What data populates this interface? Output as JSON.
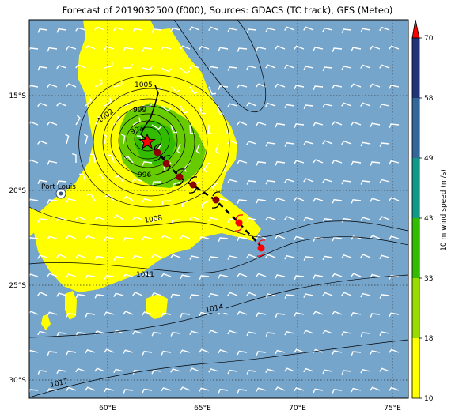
{
  "title": "Forecast of 2019032500 (f000), Sources: GDACS (TC track), GFS (Meteo)",
  "map": {
    "lon_range": [
      55.8,
      76
    ],
    "lat_range": [
      -31,
      -11
    ],
    "lon_ticks": [
      "60°E",
      "65°E",
      "70°E",
      "75°E"
    ],
    "lat_ticks": [
      "15°S",
      "20°S",
      "25°S",
      "30°S"
    ],
    "place_label": "Port Louis",
    "isobar_labels": [
      "1005",
      "1002",
      "999",
      "993",
      "996",
      "1008",
      "1011",
      "1014",
      "1017"
    ]
  },
  "colorbar": {
    "label": "10 m wind speed (m/s)",
    "ticks": [
      "10",
      "18",
      "33",
      "43",
      "49",
      "58",
      "70"
    ],
    "colors": [
      "#ffff00",
      "#99dd00",
      "#33bb00",
      "#119988",
      "#336699",
      "#223377"
    ]
  },
  "colors": {
    "ocean": "#76a5cc",
    "gale": "#ffff00",
    "storm": "#66cc00",
    "track_past": "#8b0000",
    "track_future": "#ff0000",
    "center_star": "#ff0000"
  }
}
